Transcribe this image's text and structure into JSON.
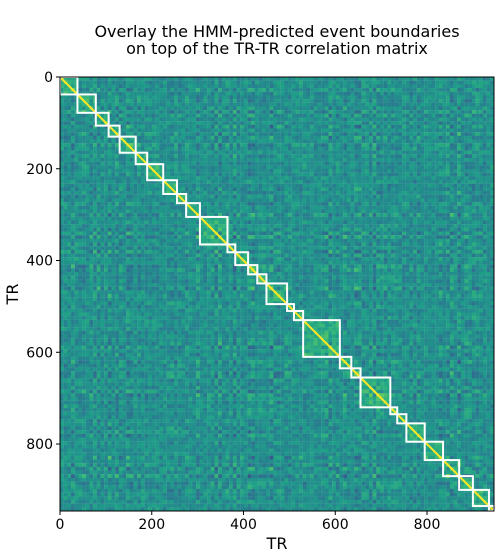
{
  "chart_data": {
    "type": "heatmap",
    "title_lines": [
      "Overlay the HMM-predicted event boundaries",
      "on top of the TR-TR correlation matrix"
    ],
    "xlabel": "TR",
    "ylabel": "TR",
    "xlim": [
      0,
      946
    ],
    "ylim": [
      946,
      0
    ],
    "x_ticks": [
      0,
      200,
      400,
      600,
      800
    ],
    "y_ticks": [
      0,
      200,
      400,
      600,
      800
    ],
    "colormap": "viridis",
    "diagonal_value": 1.0,
    "event_boundaries": [
      0,
      38,
      78,
      106,
      130,
      165,
      190,
      225,
      255,
      275,
      305,
      365,
      382,
      410,
      430,
      450,
      495,
      510,
      530,
      610,
      635,
      655,
      720,
      735,
      755,
      795,
      835,
      870,
      900,
      935,
      946
    ],
    "boundary_color": "#ffffff"
  }
}
